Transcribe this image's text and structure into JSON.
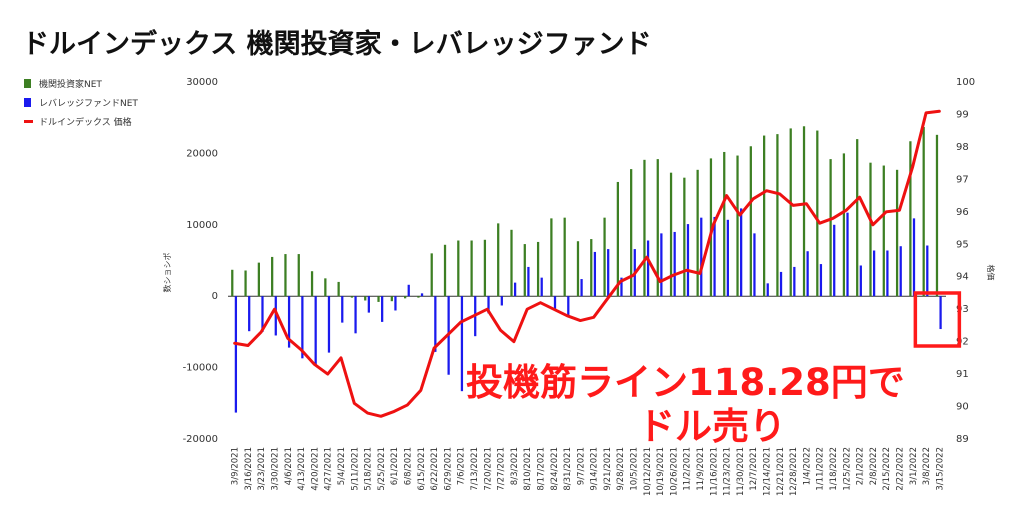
{
  "title": "ドルインデックス 機関投資家・レバレッジファンド",
  "annotation_lines": [
    "投機筋ライン118.28円で",
    "ドル売り"
  ],
  "colors": {
    "institutional": "#3d7f23",
    "leveraged": "#1a1aee",
    "index": "#ee1111",
    "highlight": "#ff1a1a"
  },
  "chart_data": {
    "type": "bar",
    "title": "ドルインデックス 機関投資家・レバレッジファンド",
    "xlabel": "",
    "ylabel": "数ショシポ",
    "y2label": "格価",
    "ylim": [
      -20000,
      30000
    ],
    "y2lim": [
      89,
      100
    ],
    "yticks": [
      "30000",
      "20000",
      "10000",
      "0",
      "-10000",
      "-20000"
    ],
    "y2ticks": [
      "100",
      "99",
      "98",
      "97",
      "96",
      "95",
      "94",
      "93",
      "92",
      "91",
      "90",
      "89"
    ],
    "legend_position": "left",
    "categories": [
      "3/9/2021",
      "3/16/2021",
      "3/23/2021",
      "3/30/2021",
      "4/6/2021",
      "4/13/2021",
      "4/20/2021",
      "4/27/2021",
      "5/4/2021",
      "5/11/2021",
      "5/18/2021",
      "5/25/2021",
      "6/1/2021",
      "6/8/2021",
      "6/15/2021",
      "6/22/2021",
      "6/29/2021",
      "7/6/2021",
      "7/13/2021",
      "7/20/2021",
      "7/27/2021",
      "8/3/2021",
      "8/10/2021",
      "8/17/2021",
      "8/24/2021",
      "8/31/2021",
      "9/7/2021",
      "9/14/2021",
      "9/21/2021",
      "9/28/2021",
      "10/5/2021",
      "10/12/2021",
      "10/19/2021",
      "10/26/2021",
      "11/2/2021",
      "11/9/2021",
      "11/16/2021",
      "11/23/2021",
      "11/30/2021",
      "12/7/2021",
      "12/14/2021",
      "12/21/2021",
      "12/28/2021",
      "1/4/2022",
      "1/11/2022",
      "1/18/2022",
      "1/25/2022",
      "2/1/2022",
      "2/8/2022",
      "2/15/2022",
      "2/22/2022",
      "3/1/2022",
      "3/8/2022",
      "3/15/2022"
    ],
    "series": [
      {
        "name": "機関投資家NET",
        "axis": "left",
        "kind": "bar",
        "values": [
          3700,
          3600,
          4700,
          5500,
          5900,
          5900,
          3500,
          2500,
          2000,
          -200,
          -600,
          -800,
          -700,
          -300,
          -200,
          6000,
          7200,
          7800,
          7800,
          7900,
          10200,
          9300,
          7300,
          7600,
          10900,
          11000,
          7700,
          8000,
          11000,
          16000,
          17800,
          19100,
          19200,
          17300,
          16600,
          17700,
          19300,
          20200,
          19700,
          21000,
          22500,
          22700,
          23500,
          23800,
          23200,
          19200,
          20000,
          22000,
          18700,
          18300,
          17700,
          21700,
          23700,
          22600
        ]
      },
      {
        "name": "レバレッジファンドNET",
        "axis": "left",
        "kind": "bar",
        "values": [
          -16300,
          -4900,
          -5000,
          -5500,
          -7200,
          -8700,
          -9600,
          -7900,
          -3700,
          -5200,
          -2300,
          -3600,
          -2000,
          1600,
          400,
          -7800,
          -11000,
          -13300,
          -5600,
          -2400,
          -1300,
          1900,
          4100,
          2600,
          -1900,
          -2900,
          2400,
          6200,
          6600,
          2600,
          6600,
          7800,
          8800,
          9000,
          10100,
          11000,
          11100,
          10700,
          12300,
          8800,
          1800,
          3400,
          4100,
          6300,
          4500,
          10000,
          11700,
          4300,
          6400,
          6400,
          7000,
          10900,
          7100,
          -4600
        ]
      },
      {
        "name": "ドルインデックス 価格",
        "axis": "right",
        "kind": "line",
        "values": [
          91.95,
          91.88,
          92.3,
          93.0,
          92.1,
          91.75,
          91.3,
          91.0,
          91.5,
          90.1,
          89.8,
          89.7,
          89.85,
          90.05,
          90.5,
          91.8,
          92.2,
          92.6,
          92.8,
          93.0,
          92.35,
          92.0,
          93.0,
          93.2,
          93.0,
          92.8,
          92.65,
          92.75,
          93.3,
          93.85,
          94.05,
          94.6,
          93.85,
          94.05,
          94.2,
          94.1,
          95.6,
          96.5,
          95.9,
          96.4,
          96.65,
          96.55,
          96.2,
          96.25,
          95.65,
          95.8,
          96.05,
          96.45,
          95.6,
          96.0,
          96.05,
          97.4,
          99.05,
          99.1
        ]
      }
    ]
  }
}
